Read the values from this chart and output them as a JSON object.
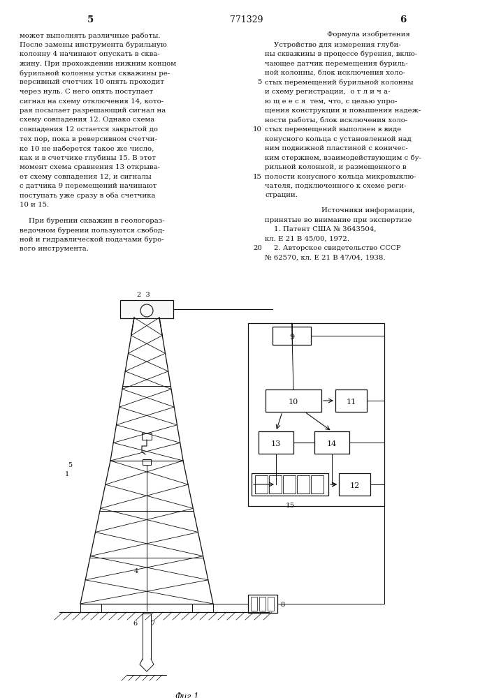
{
  "background_color": "#ffffff",
  "page_number_left": "5",
  "page_number_center": "771329",
  "page_number_right": "6",
  "fig_label": "Фиг.1",
  "left_col_lines": [
    "может выполнять различные работы.",
    "После замены инструмента бурильную",
    "колонну 4 начинают опускать в сква-",
    "жину. При прохождении нижним концом",
    "бурильной колонны устья скважины ре-",
    "версивный счетчик 10 опять проходит",
    "через нуль. С него опять поступает",
    "сигнал на схему отключения 14, кото-",
    "рая посылает разрешающий сигнал на",
    "схему совпадения 12. Однако схема",
    "совпадения 12 остается закрытой до",
    "тех пор, пока в реверсивном счетчи-",
    "ке 10 не наберется такое же число,",
    "как и в счетчике глубины 15. В этот",
    "момент схема сравнения 13 открыва-",
    "ет схему совпадения 12, и сигналы",
    "с датчика 9 перемещений начинают",
    "поступать уже сразу в оба счетчика",
    "10 и 15."
  ],
  "left_col_lines2": [
    "    При бурении скважин в геологораз-",
    "ведочном бурении пользуются свобод-",
    "ной и гидравлической подачами буро-",
    "вого инструмента."
  ],
  "right_title": "Формула изобретения",
  "right_lines": [
    "    Устройство для измерения глуби-",
    "ны скважины в процессе бурения, вклю-",
    "чающее датчик перемещения буриль-",
    "ной колонны, блок исключения холо-",
    "стых перемещений бурильной колонны",
    "и схему регистрации,  о т л и ч а-",
    "ю щ е е с я  тем, что, с целью упро-",
    "щения конструкции и повышения надеж-",
    "ности работы, блок исключения холо-",
    "стых перемещений выполнен в виде",
    "конусного кольца с установленной над",
    "ним подвижной пластиной с коничес-",
    "ким стержнем, взаимодействующим с бу-",
    "рильной колонной, и размещенного в",
    "полости конусного кольца микровыклю-",
    "чателя, подключенного к схеме реги-",
    "страции."
  ],
  "src_title": "Источники информации,",
  "src_lines": [
    "принятые во внимание при экспертизе",
    "    1. Патент США № 3643504,",
    "кл. Е 21 В 45/00, 1972.",
    "    2. Авторское свидетельство СССР",
    "№ 62570, кл. Е 21 В 47/04, 1938."
  ]
}
